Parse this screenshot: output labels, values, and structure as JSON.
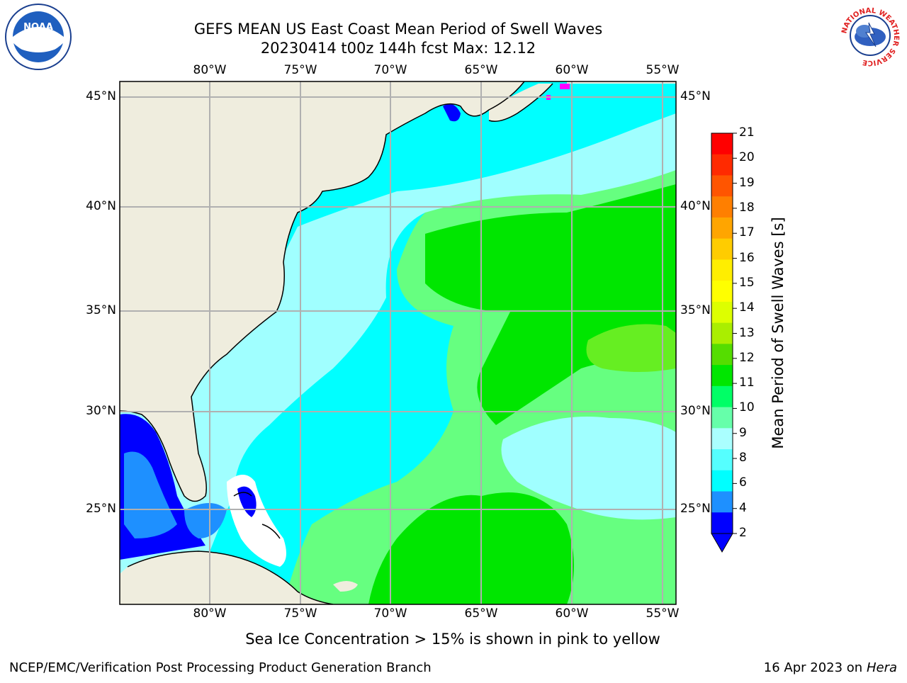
{
  "header": {
    "title_line1": "GEFS MEAN US East Coast Mean Period of Swell Waves",
    "title_line2": "20230414 t00z 144h fcst   Max: 12.12"
  },
  "logos": {
    "left": {
      "icon": "noaa-logo",
      "text": "NOAA"
    },
    "right": {
      "icon": "nws-logo",
      "ring_text": "NATIONAL WEATHER SERVICE"
    }
  },
  "map": {
    "lon_labels": [
      "80°W",
      "75°W",
      "70°W",
      "65°W",
      "60°W",
      "55°W"
    ],
    "lat_labels": [
      "45°N",
      "40°N",
      "35°N",
      "30°N",
      "25°N"
    ],
    "colors": {
      "land": "#efedde",
      "grid": "#b0b0b0",
      "c2_4": "#0000ff",
      "c4_6": "#1e90ff",
      "c6_8": "#00ffff",
      "c8_9": "#a0ffff",
      "c9_10": "#66ff80",
      "c10_11": "#00e600",
      "c11_12": "#66ee22",
      "ice": "#ff00ff"
    }
  },
  "colorbar": {
    "label": "Mean Period of Swell Waves [s]",
    "ticks": [
      "21",
      "20",
      "19",
      "18",
      "17",
      "16",
      "15",
      "14",
      "13",
      "12",
      "11",
      "10",
      "9",
      "8",
      "6",
      "4",
      "2"
    ],
    "colors": [
      "#ff0000",
      "#ff2a00",
      "#ff5500",
      "#ff7f00",
      "#ffa500",
      "#ffcc00",
      "#ffee00",
      "#ffff00",
      "#ddff00",
      "#aaee00",
      "#55dd00",
      "#00e600",
      "#00ff66",
      "#66ffaa",
      "#aaffff",
      "#55ffff",
      "#00ffff",
      "#1e90ff",
      "#0000ff"
    ],
    "extend_color": "#0000ff"
  },
  "notes": {
    "ice": "Sea Ice Concentration > 15% is shown in pink to yellow"
  },
  "footer": {
    "left": "NCEP/EMC/Verification Post Processing Product Generation Branch",
    "right_date": "16 Apr 2023 on ",
    "right_host": "Hera"
  }
}
